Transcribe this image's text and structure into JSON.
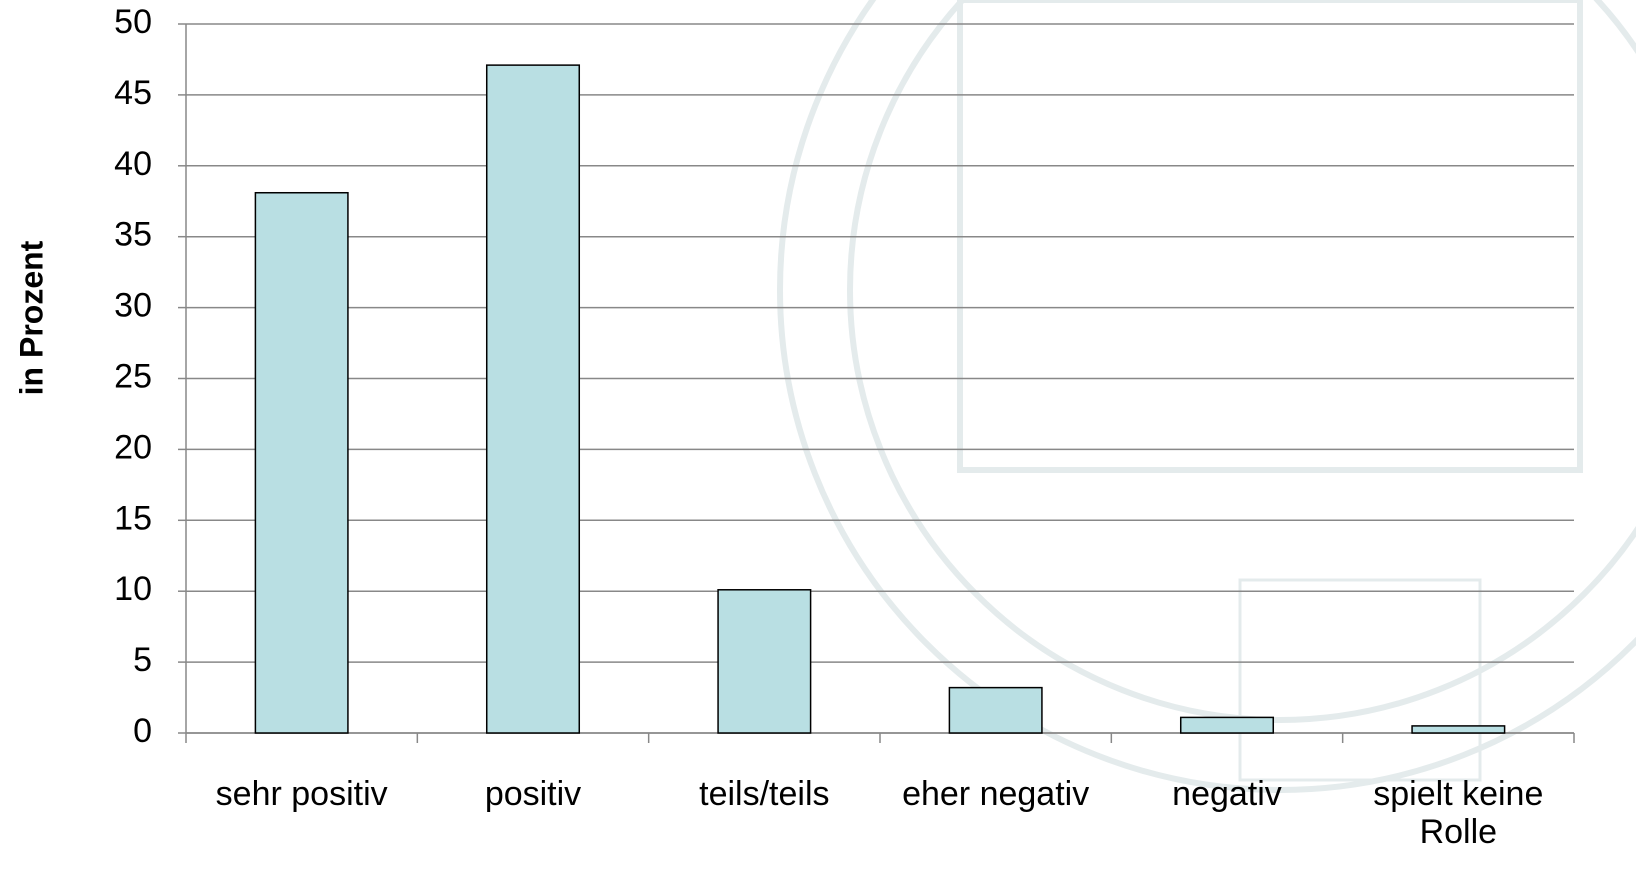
{
  "chart_data": {
    "type": "bar",
    "y_label": "in Prozent",
    "categories": [
      "sehr positiv",
      "positiv",
      "teils/teils",
      "eher negativ",
      "negativ",
      "spielt keine Rolle"
    ],
    "values": [
      38.1,
      47.1,
      10.1,
      3.2,
      1.1,
      0.5
    ],
    "color": "#b9dfe3",
    "ylim": [
      0,
      50
    ],
    "yticks": [
      0,
      5,
      10,
      15,
      20,
      25,
      30,
      35,
      40,
      45,
      50
    ],
    "grid": true
  }
}
